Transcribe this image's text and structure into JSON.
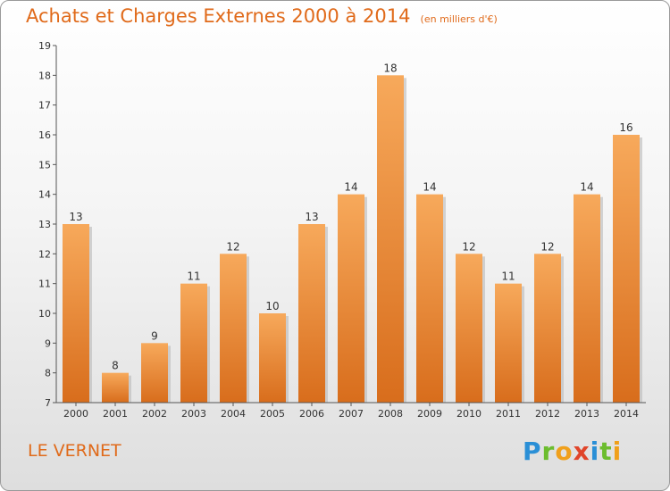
{
  "header": {
    "title": "Achats et Charges Externes 2000 à 2014",
    "unit": "(en milliers d'€)"
  },
  "footer": {
    "place": "LE VERNET",
    "logo_text": "Proxiti"
  },
  "colors": {
    "title": "#e06a1a",
    "bar_light": "#f7a95b",
    "bar_dark": "#d86d1c",
    "axis": "#555555"
  },
  "chart_data": {
    "type": "bar",
    "title": "Achats et Charges Externes 2000 à 2014",
    "subtitle": "(en milliers d'€)",
    "xlabel": "",
    "ylabel": "",
    "categories": [
      "2000",
      "2001",
      "2002",
      "2003",
      "2004",
      "2005",
      "2006",
      "2007",
      "2008",
      "2009",
      "2010",
      "2011",
      "2012",
      "2013",
      "2014"
    ],
    "values": [
      13,
      8,
      9,
      11,
      12,
      10,
      13,
      14,
      18,
      14,
      12,
      11,
      12,
      14,
      16
    ],
    "ylim": [
      7,
      19
    ],
    "yticks": [
      7,
      8,
      9,
      10,
      11,
      12,
      13,
      14,
      15,
      16,
      17,
      18,
      19
    ],
    "grid": false,
    "legend": "none"
  }
}
